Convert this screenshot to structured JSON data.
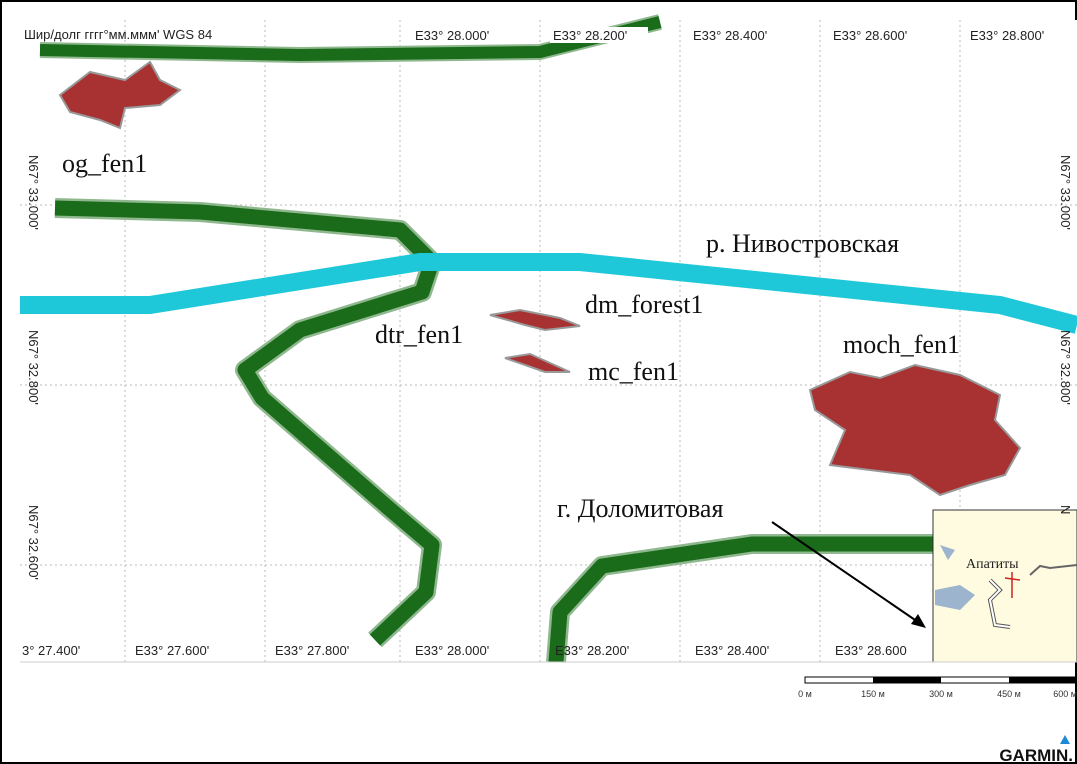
{
  "header": {
    "datum": "Шир/долг гггг°мм.ммм' WGS 84"
  },
  "grid": {
    "top_labels": [
      "E33° 28.000'",
      "E33° 28.200'",
      "E33° 28.400'",
      "E33° 28.600'",
      "E33° 28.800'"
    ],
    "bottom_labels": [
      "3° 27.400'",
      "E33° 27.600'",
      "E33° 27.800'",
      "E33° 28.000'",
      "E33° 28.200'",
      "E33° 28.400'",
      "E33° 28.600"
    ],
    "left_labels": [
      "N67° 33.000'",
      "N67° 32.800'",
      "N67° 32.600'"
    ],
    "right_labels": [
      "N67° 33.000'",
      "N67° 32.800'",
      "N"
    ]
  },
  "features": {
    "og_fen": "og_fen1",
    "river": "р. Нивостровская",
    "dm_forest": "dm_forest1",
    "dtr_fen": "dtr_fen1",
    "mc_fen": "mc_fen1",
    "moch_fen": "moch_fen1",
    "mountain": "г. Доломитовая"
  },
  "inset": {
    "city": "Апатиты"
  },
  "scale": {
    "labels": [
      "0 м",
      "150 м",
      "300 м",
      "450 м",
      "600 м"
    ]
  },
  "brand": "GARMIN."
}
